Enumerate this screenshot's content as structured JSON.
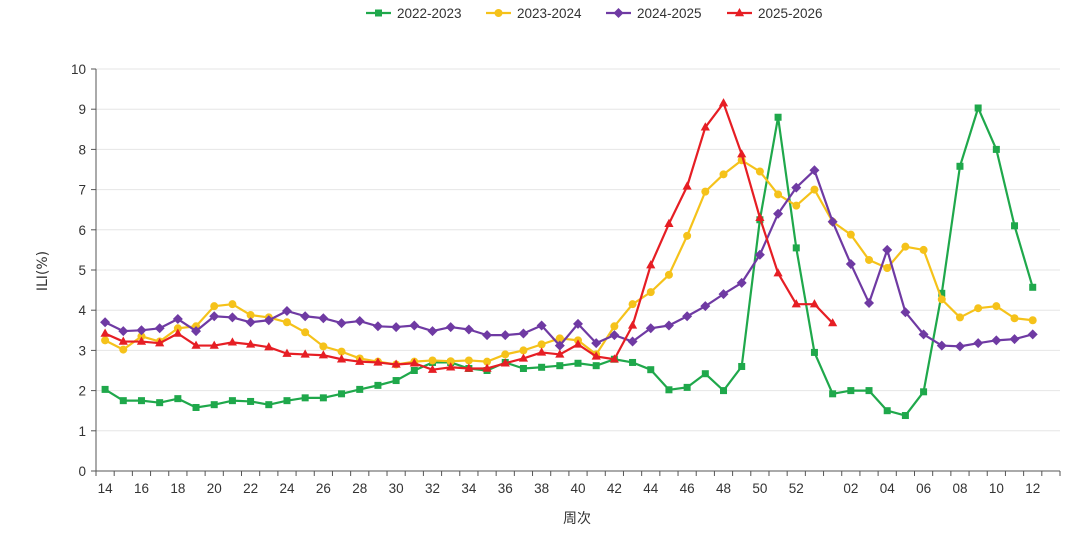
{
  "chart_data": {
    "type": "line",
    "title": "",
    "xlabel": "周次",
    "ylabel": "ILI(%)",
    "ylim": [
      0,
      10
    ],
    "yticks": [
      0,
      1,
      2,
      3,
      4,
      5,
      6,
      7,
      8,
      9,
      10
    ],
    "legend_position": "top-center",
    "categories": [
      "14",
      "15",
      "16",
      "17",
      "18",
      "19",
      "20",
      "21",
      "22",
      "23",
      "24",
      "25",
      "26",
      "27",
      "28",
      "29",
      "30",
      "31",
      "32",
      "33",
      "34",
      "35",
      "36",
      "37",
      "38",
      "39",
      "40",
      "41",
      "42",
      "43",
      "44",
      "45",
      "46",
      "47",
      "48",
      "49",
      "50",
      "51",
      "52",
      "53",
      "01",
      "02",
      "03",
      "04",
      "05",
      "06",
      "07",
      "08",
      "09",
      "10",
      "11",
      "12",
      "13"
    ],
    "tick_labels": [
      "14",
      "16",
      "18",
      "20",
      "22",
      "24",
      "26",
      "28",
      "30",
      "32",
      "34",
      "36",
      "38",
      "40",
      "42",
      "44",
      "46",
      "48",
      "50",
      "52",
      "02",
      "04",
      "06",
      "08",
      "10",
      "12"
    ],
    "series": [
      {
        "name": "2022-2023",
        "color": "#1fa84b",
        "marker": "square",
        "values": [
          2.03,
          1.75,
          1.75,
          1.7,
          1.8,
          1.58,
          1.65,
          1.75,
          1.73,
          1.65,
          1.75,
          1.82,
          1.82,
          1.92,
          2.03,
          2.13,
          2.25,
          2.5,
          2.7,
          2.7,
          2.55,
          2.5,
          2.7,
          2.55,
          2.58,
          2.62,
          2.68,
          2.62,
          2.78,
          2.7,
          2.52,
          2.02,
          2.08,
          2.42,
          2.0,
          2.6,
          6.25,
          8.8,
          5.55,
          2.95,
          1.92,
          2.0,
          2.0,
          1.5,
          1.38,
          1.97,
          4.42,
          7.58,
          9.03,
          8.0,
          6.1,
          4.57,
          null
        ]
      },
      {
        "name": "2023-2024",
        "color": "#f5c21a",
        "marker": "circle",
        "values": [
          3.25,
          3.02,
          3.35,
          3.22,
          3.55,
          3.6,
          4.1,
          4.15,
          3.88,
          3.82,
          3.7,
          3.45,
          3.1,
          2.97,
          2.8,
          2.72,
          2.65,
          2.72,
          2.75,
          2.73,
          2.75,
          2.72,
          2.9,
          3.0,
          3.15,
          3.3,
          3.25,
          2.9,
          3.6,
          4.15,
          4.45,
          4.88,
          5.85,
          6.95,
          7.38,
          7.73,
          7.45,
          6.88,
          6.6,
          7.0,
          6.2,
          5.88,
          5.25,
          5.05,
          5.58,
          5.5,
          4.27,
          3.82,
          4.05,
          4.1,
          3.8,
          3.75,
          null
        ]
      },
      {
        "name": "2024-2025",
        "color": "#6f3aa3",
        "marker": "diamond",
        "values": [
          3.7,
          3.48,
          3.5,
          3.55,
          3.78,
          3.48,
          3.85,
          3.82,
          3.7,
          3.75,
          3.98,
          3.85,
          3.8,
          3.68,
          3.73,
          3.6,
          3.58,
          3.62,
          3.48,
          3.58,
          3.52,
          3.38,
          3.38,
          3.42,
          3.62,
          3.12,
          3.66,
          3.18,
          3.38,
          3.22,
          3.55,
          3.62,
          3.85,
          4.1,
          4.4,
          4.68,
          5.38,
          6.4,
          7.05,
          7.48,
          6.2,
          5.15,
          4.18,
          5.5,
          3.95,
          3.4,
          3.12,
          3.1,
          3.18,
          3.25,
          3.28,
          3.4,
          null
        ]
      },
      {
        "name": "2025-2026",
        "color": "#e61e24",
        "marker": "triangle",
        "values": [
          3.42,
          3.22,
          3.22,
          3.18,
          3.42,
          3.12,
          3.12,
          3.2,
          3.15,
          3.08,
          2.92,
          2.9,
          2.88,
          2.78,
          2.72,
          2.7,
          2.65,
          2.68,
          2.52,
          2.58,
          2.55,
          2.55,
          2.68,
          2.8,
          2.95,
          2.9,
          3.15,
          2.85,
          2.78,
          3.62,
          5.12,
          6.15,
          7.08,
          8.55,
          9.15,
          7.88,
          6.3,
          4.92,
          4.15,
          4.15,
          3.68,
          null,
          null,
          null,
          null,
          null,
          null,
          null,
          null,
          null,
          null,
          null,
          null
        ]
      }
    ]
  }
}
